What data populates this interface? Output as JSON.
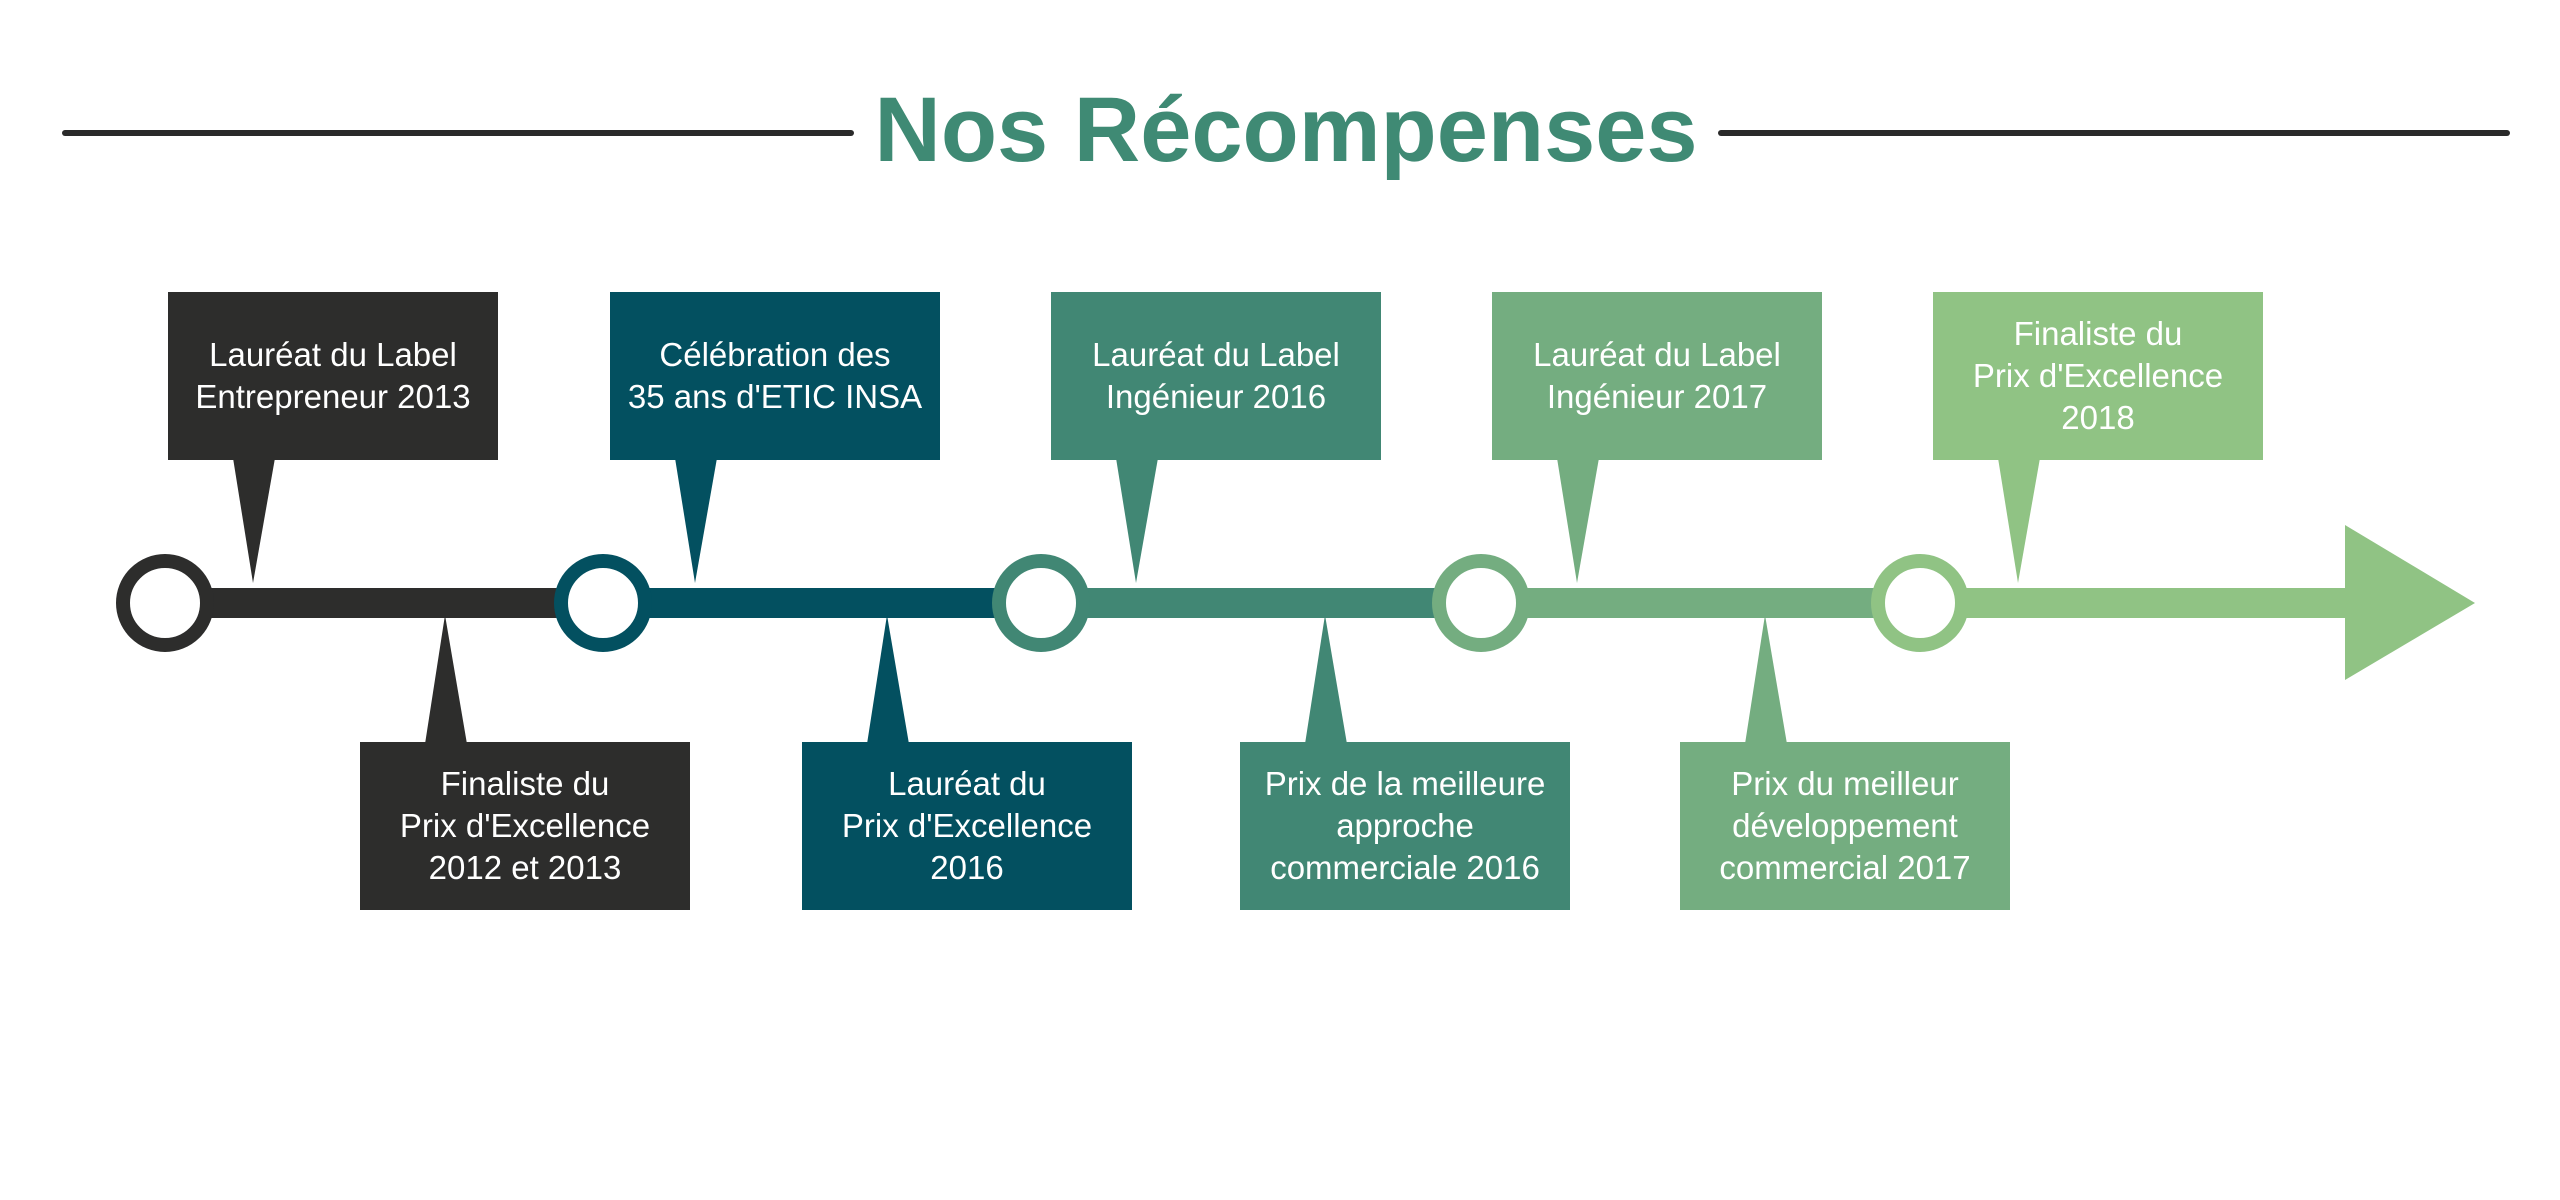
{
  "title": "Nos Récompenses",
  "colors": {
    "title": "#3f8a74",
    "rule": "#2a2a2a",
    "stages": [
      "#2d2d2c",
      "#035060",
      "#418774",
      "#74ad80",
      "#90c384"
    ]
  },
  "stages": [
    {
      "top": {
        "lines": [
          "Lauréat du Label",
          "Entrepreneur 2013"
        ]
      },
      "bottom": {
        "lines": [
          "Finaliste du",
          "Prix d'Excellence",
          "2012 et 2013"
        ]
      }
    },
    {
      "top": {
        "lines": [
          "Célébration des",
          "35 ans d'ETIC INSA"
        ]
      },
      "bottom": {
        "lines": [
          "Lauréat du",
          "Prix d'Excellence",
          "2016"
        ]
      }
    },
    {
      "top": {
        "lines": [
          "Lauréat du Label",
          "Ingénieur 2016"
        ]
      },
      "bottom": {
        "lines": [
          "Prix de la meilleure",
          "approche",
          "commerciale 2016"
        ]
      }
    },
    {
      "top": {
        "lines": [
          "Lauréat du Label",
          "Ingénieur 2017"
        ]
      },
      "bottom": {
        "lines": [
          "Prix du meilleur",
          "développement",
          "commercial 2017"
        ]
      }
    },
    {
      "top": {
        "lines": [
          "Finaliste du",
          "Prix d'Excellence",
          "2018"
        ]
      },
      "bottom": null
    }
  ]
}
